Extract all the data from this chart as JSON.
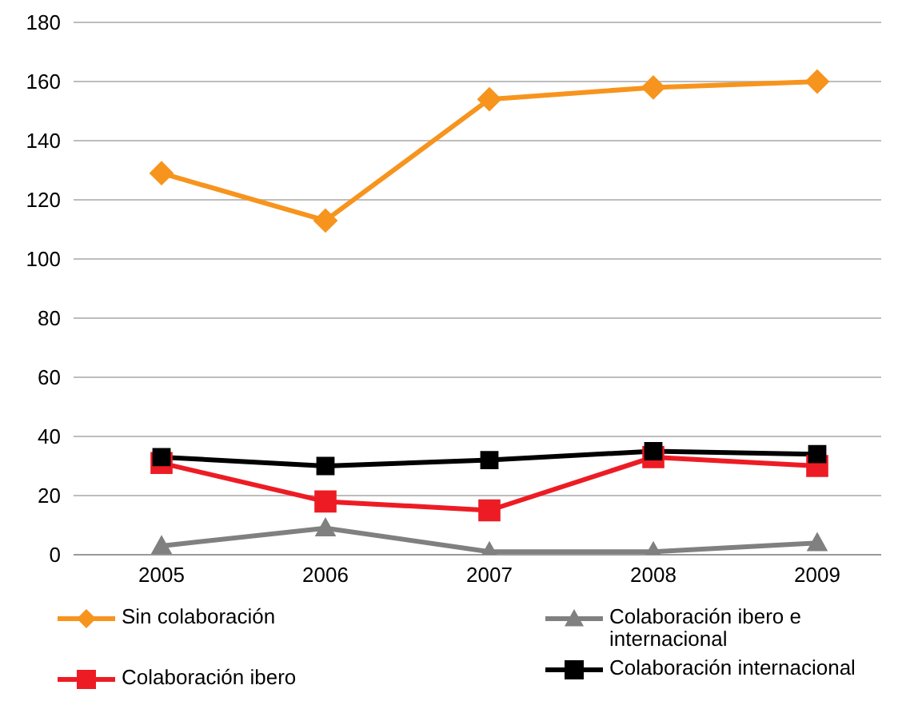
{
  "chart_data": {
    "type": "line",
    "categories": [
      "2005",
      "2006",
      "2007",
      "2008",
      "2009"
    ],
    "series": [
      {
        "name": "Sin colaboración",
        "color": "#f7941d",
        "marker": "diamond",
        "values": [
          129,
          113,
          154,
          158,
          160
        ]
      },
      {
        "name": "Colaboración ibero",
        "color": "#ed1c24",
        "marker": "square",
        "values": [
          31,
          18,
          15,
          33,
          30
        ]
      },
      {
        "name": "Colaboración ibero e internacional",
        "color": "#808080",
        "marker": "triangle",
        "values": [
          3,
          9,
          1,
          1,
          4
        ]
      },
      {
        "name": "Colaboración internacional",
        "color": "#000000",
        "marker": "square",
        "values": [
          33,
          30,
          32,
          35,
          34
        ]
      }
    ],
    "ylim": [
      0,
      180
    ],
    "yticks": [
      0,
      20,
      40,
      60,
      80,
      100,
      120,
      140,
      160,
      180
    ],
    "grid": "y",
    "legend": "bottom"
  }
}
